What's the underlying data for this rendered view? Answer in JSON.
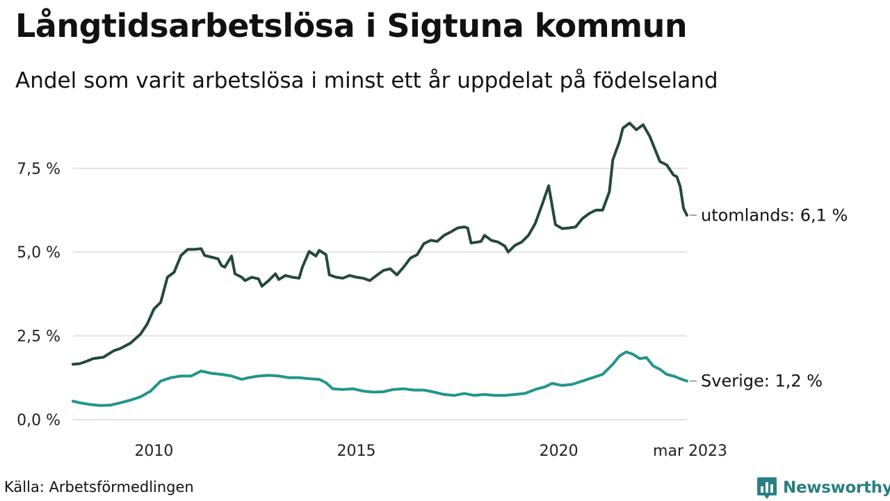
{
  "header": {
    "title": "Långtidsarbetslösa i Sigtuna kommun",
    "subtitle": "Andel som varit arbetslösa i minst ett år uppdelat på födelseland"
  },
  "footer": {
    "source": "Källa: Arbetsförmedlingen",
    "brand": "Newsworthy"
  },
  "colors": {
    "utomlands": "#24483f",
    "sverige": "#21968a",
    "grid": "#e2e2e2",
    "brand": "#2a7f82"
  },
  "chart_data": {
    "type": "line",
    "title": "Långtidsarbetslösa i Sigtuna kommun",
    "subtitle": "Andel som varit arbetslösa i minst ett år uppdelat på födelseland",
    "xlabel": "",
    "ylabel": "",
    "x_start": "2008-01",
    "x_end": "2023-03",
    "x_step": "month",
    "xlim": [
      "2008-01",
      "2023-03"
    ],
    "ylim": [
      0,
      9.2
    ],
    "grid": true,
    "legend": "inline labels at line ends",
    "x_ticks": [
      {
        "x": "2010-01",
        "label": "2010"
      },
      {
        "x": "2015-01",
        "label": "2015"
      },
      {
        "x": "2020-01",
        "label": "2020"
      },
      {
        "x": "2023-03",
        "label": "mar 2023"
      }
    ],
    "y_ticks": [
      {
        "value": 0,
        "label": "0,0 %"
      },
      {
        "value": 2.5,
        "label": "2,5 %"
      },
      {
        "value": 5,
        "label": "5,0 %"
      },
      {
        "value": 7.5,
        "label": "7,5 %"
      }
    ],
    "series": [
      {
        "name": "utomlands",
        "end_label": "utomlands: 6,1 %",
        "anchors": [
          [
            "2008-01",
            1.65
          ],
          [
            "2008-03",
            1.67
          ],
          [
            "2008-05",
            1.74
          ],
          [
            "2008-07",
            1.82
          ],
          [
            "2008-10",
            1.86
          ],
          [
            "2009-01",
            2.05
          ],
          [
            "2009-03",
            2.12
          ],
          [
            "2009-06",
            2.28
          ],
          [
            "2009-09",
            2.55
          ],
          [
            "2009-11",
            2.85
          ],
          [
            "2010-01",
            3.3
          ],
          [
            "2010-03",
            3.5
          ],
          [
            "2010-05",
            4.25
          ],
          [
            "2010-07",
            4.4
          ],
          [
            "2010-09",
            4.9
          ],
          [
            "2010-11",
            5.08
          ],
          [
            "2011-01",
            5.08
          ],
          [
            "2011-03",
            5.1
          ],
          [
            "2011-04",
            4.9
          ],
          [
            "2011-06",
            4.85
          ],
          [
            "2011-08",
            4.8
          ],
          [
            "2011-09",
            4.6
          ],
          [
            "2011-10",
            4.55
          ],
          [
            "2011-12",
            4.88
          ],
          [
            "2012-01",
            4.35
          ],
          [
            "2012-03",
            4.25
          ],
          [
            "2012-04",
            4.15
          ],
          [
            "2012-06",
            4.25
          ],
          [
            "2012-08",
            4.2
          ],
          [
            "2012-09",
            3.98
          ],
          [
            "2012-11",
            4.15
          ],
          [
            "2013-01",
            4.35
          ],
          [
            "2013-02",
            4.18
          ],
          [
            "2013-04",
            4.3
          ],
          [
            "2013-06",
            4.25
          ],
          [
            "2013-08",
            4.22
          ],
          [
            "2013-09",
            4.55
          ],
          [
            "2013-11",
            5.02
          ],
          [
            "2014-01",
            4.88
          ],
          [
            "2014-02",
            5.05
          ],
          [
            "2014-04",
            4.92
          ],
          [
            "2014-05",
            4.32
          ],
          [
            "2014-07",
            4.25
          ],
          [
            "2014-09",
            4.22
          ],
          [
            "2014-11",
            4.3
          ],
          [
            "2015-01",
            4.25
          ],
          [
            "2015-03",
            4.22
          ],
          [
            "2015-05",
            4.15
          ],
          [
            "2015-07",
            4.3
          ],
          [
            "2015-09",
            4.45
          ],
          [
            "2015-11",
            4.5
          ],
          [
            "2016-01",
            4.32
          ],
          [
            "2016-03",
            4.55
          ],
          [
            "2016-05",
            4.82
          ],
          [
            "2016-07",
            4.92
          ],
          [
            "2016-09",
            5.25
          ],
          [
            "2016-11",
            5.35
          ],
          [
            "2017-01",
            5.32
          ],
          [
            "2017-03",
            5.5
          ],
          [
            "2017-05",
            5.6
          ],
          [
            "2017-07",
            5.72
          ],
          [
            "2017-09",
            5.75
          ],
          [
            "2017-10",
            5.72
          ],
          [
            "2017-11",
            5.27
          ],
          [
            "2018-01",
            5.3
          ],
          [
            "2018-02",
            5.32
          ],
          [
            "2018-03",
            5.5
          ],
          [
            "2018-05",
            5.35
          ],
          [
            "2018-07",
            5.3
          ],
          [
            "2018-09",
            5.18
          ],
          [
            "2018-10",
            5.0
          ],
          [
            "2018-12",
            5.2
          ],
          [
            "2019-02",
            5.3
          ],
          [
            "2019-04",
            5.5
          ],
          [
            "2019-06",
            5.85
          ],
          [
            "2019-08",
            6.4
          ],
          [
            "2019-10",
            6.98
          ],
          [
            "2019-12",
            5.82
          ],
          [
            "2020-02",
            5.7
          ],
          [
            "2020-04",
            5.72
          ],
          [
            "2020-06",
            5.75
          ],
          [
            "2020-08",
            6.0
          ],
          [
            "2020-10",
            6.15
          ],
          [
            "2020-12",
            6.25
          ],
          [
            "2021-02",
            6.25
          ],
          [
            "2021-04",
            6.8
          ],
          [
            "2021-05",
            7.75
          ],
          [
            "2021-07",
            8.3
          ],
          [
            "2021-08",
            8.7
          ],
          [
            "2021-10",
            8.85
          ],
          [
            "2021-12",
            8.65
          ],
          [
            "2022-02",
            8.8
          ],
          [
            "2022-04",
            8.45
          ],
          [
            "2022-06",
            7.95
          ],
          [
            "2022-07",
            7.7
          ],
          [
            "2022-09",
            7.6
          ],
          [
            "2022-11",
            7.3
          ],
          [
            "2022-12",
            7.25
          ],
          [
            "2023-01",
            6.95
          ],
          [
            "2023-02",
            6.3
          ],
          [
            "2023-03",
            6.1
          ]
        ]
      },
      {
        "name": "Sverige",
        "end_label": "Sverige: 1,2 %",
        "anchors": [
          [
            "2008-01",
            0.55
          ],
          [
            "2008-03",
            0.5
          ],
          [
            "2008-06",
            0.45
          ],
          [
            "2008-09",
            0.42
          ],
          [
            "2008-12",
            0.43
          ],
          [
            "2009-03",
            0.5
          ],
          [
            "2009-06",
            0.58
          ],
          [
            "2009-09",
            0.68
          ],
          [
            "2009-12",
            0.85
          ],
          [
            "2010-03",
            1.15
          ],
          [
            "2010-06",
            1.25
          ],
          [
            "2010-09",
            1.3
          ],
          [
            "2010-12",
            1.3
          ],
          [
            "2011-03",
            1.45
          ],
          [
            "2011-06",
            1.38
          ],
          [
            "2011-09",
            1.35
          ],
          [
            "2011-12",
            1.3
          ],
          [
            "2012-03",
            1.2
          ],
          [
            "2012-05",
            1.25
          ],
          [
            "2012-08",
            1.3
          ],
          [
            "2012-11",
            1.32
          ],
          [
            "2013-02",
            1.3
          ],
          [
            "2013-05",
            1.25
          ],
          [
            "2013-08",
            1.25
          ],
          [
            "2013-11",
            1.22
          ],
          [
            "2014-02",
            1.2
          ],
          [
            "2014-04",
            1.1
          ],
          [
            "2014-06",
            0.92
          ],
          [
            "2014-09",
            0.9
          ],
          [
            "2014-12",
            0.92
          ],
          [
            "2015-03",
            0.85
          ],
          [
            "2015-06",
            0.82
          ],
          [
            "2015-09",
            0.83
          ],
          [
            "2015-12",
            0.9
          ],
          [
            "2016-03",
            0.92
          ],
          [
            "2016-06",
            0.88
          ],
          [
            "2016-09",
            0.88
          ],
          [
            "2016-12",
            0.82
          ],
          [
            "2017-03",
            0.75
          ],
          [
            "2017-06",
            0.72
          ],
          [
            "2017-09",
            0.78
          ],
          [
            "2017-12",
            0.72
          ],
          [
            "2018-03",
            0.75
          ],
          [
            "2018-06",
            0.72
          ],
          [
            "2018-09",
            0.72
          ],
          [
            "2018-12",
            0.75
          ],
          [
            "2019-03",
            0.78
          ],
          [
            "2019-06",
            0.9
          ],
          [
            "2019-09",
            0.98
          ],
          [
            "2019-11",
            1.08
          ],
          [
            "2020-02",
            1.02
          ],
          [
            "2020-05",
            1.05
          ],
          [
            "2020-08",
            1.15
          ],
          [
            "2020-11",
            1.25
          ],
          [
            "2021-02",
            1.35
          ],
          [
            "2021-05",
            1.65
          ],
          [
            "2021-07",
            1.9
          ],
          [
            "2021-09",
            2.02
          ],
          [
            "2021-11",
            1.95
          ],
          [
            "2022-01",
            1.82
          ],
          [
            "2022-03",
            1.85
          ],
          [
            "2022-05",
            1.6
          ],
          [
            "2022-07",
            1.5
          ],
          [
            "2022-09",
            1.35
          ],
          [
            "2022-11",
            1.3
          ],
          [
            "2023-01",
            1.22
          ],
          [
            "2023-03",
            1.15
          ]
        ]
      }
    ]
  }
}
